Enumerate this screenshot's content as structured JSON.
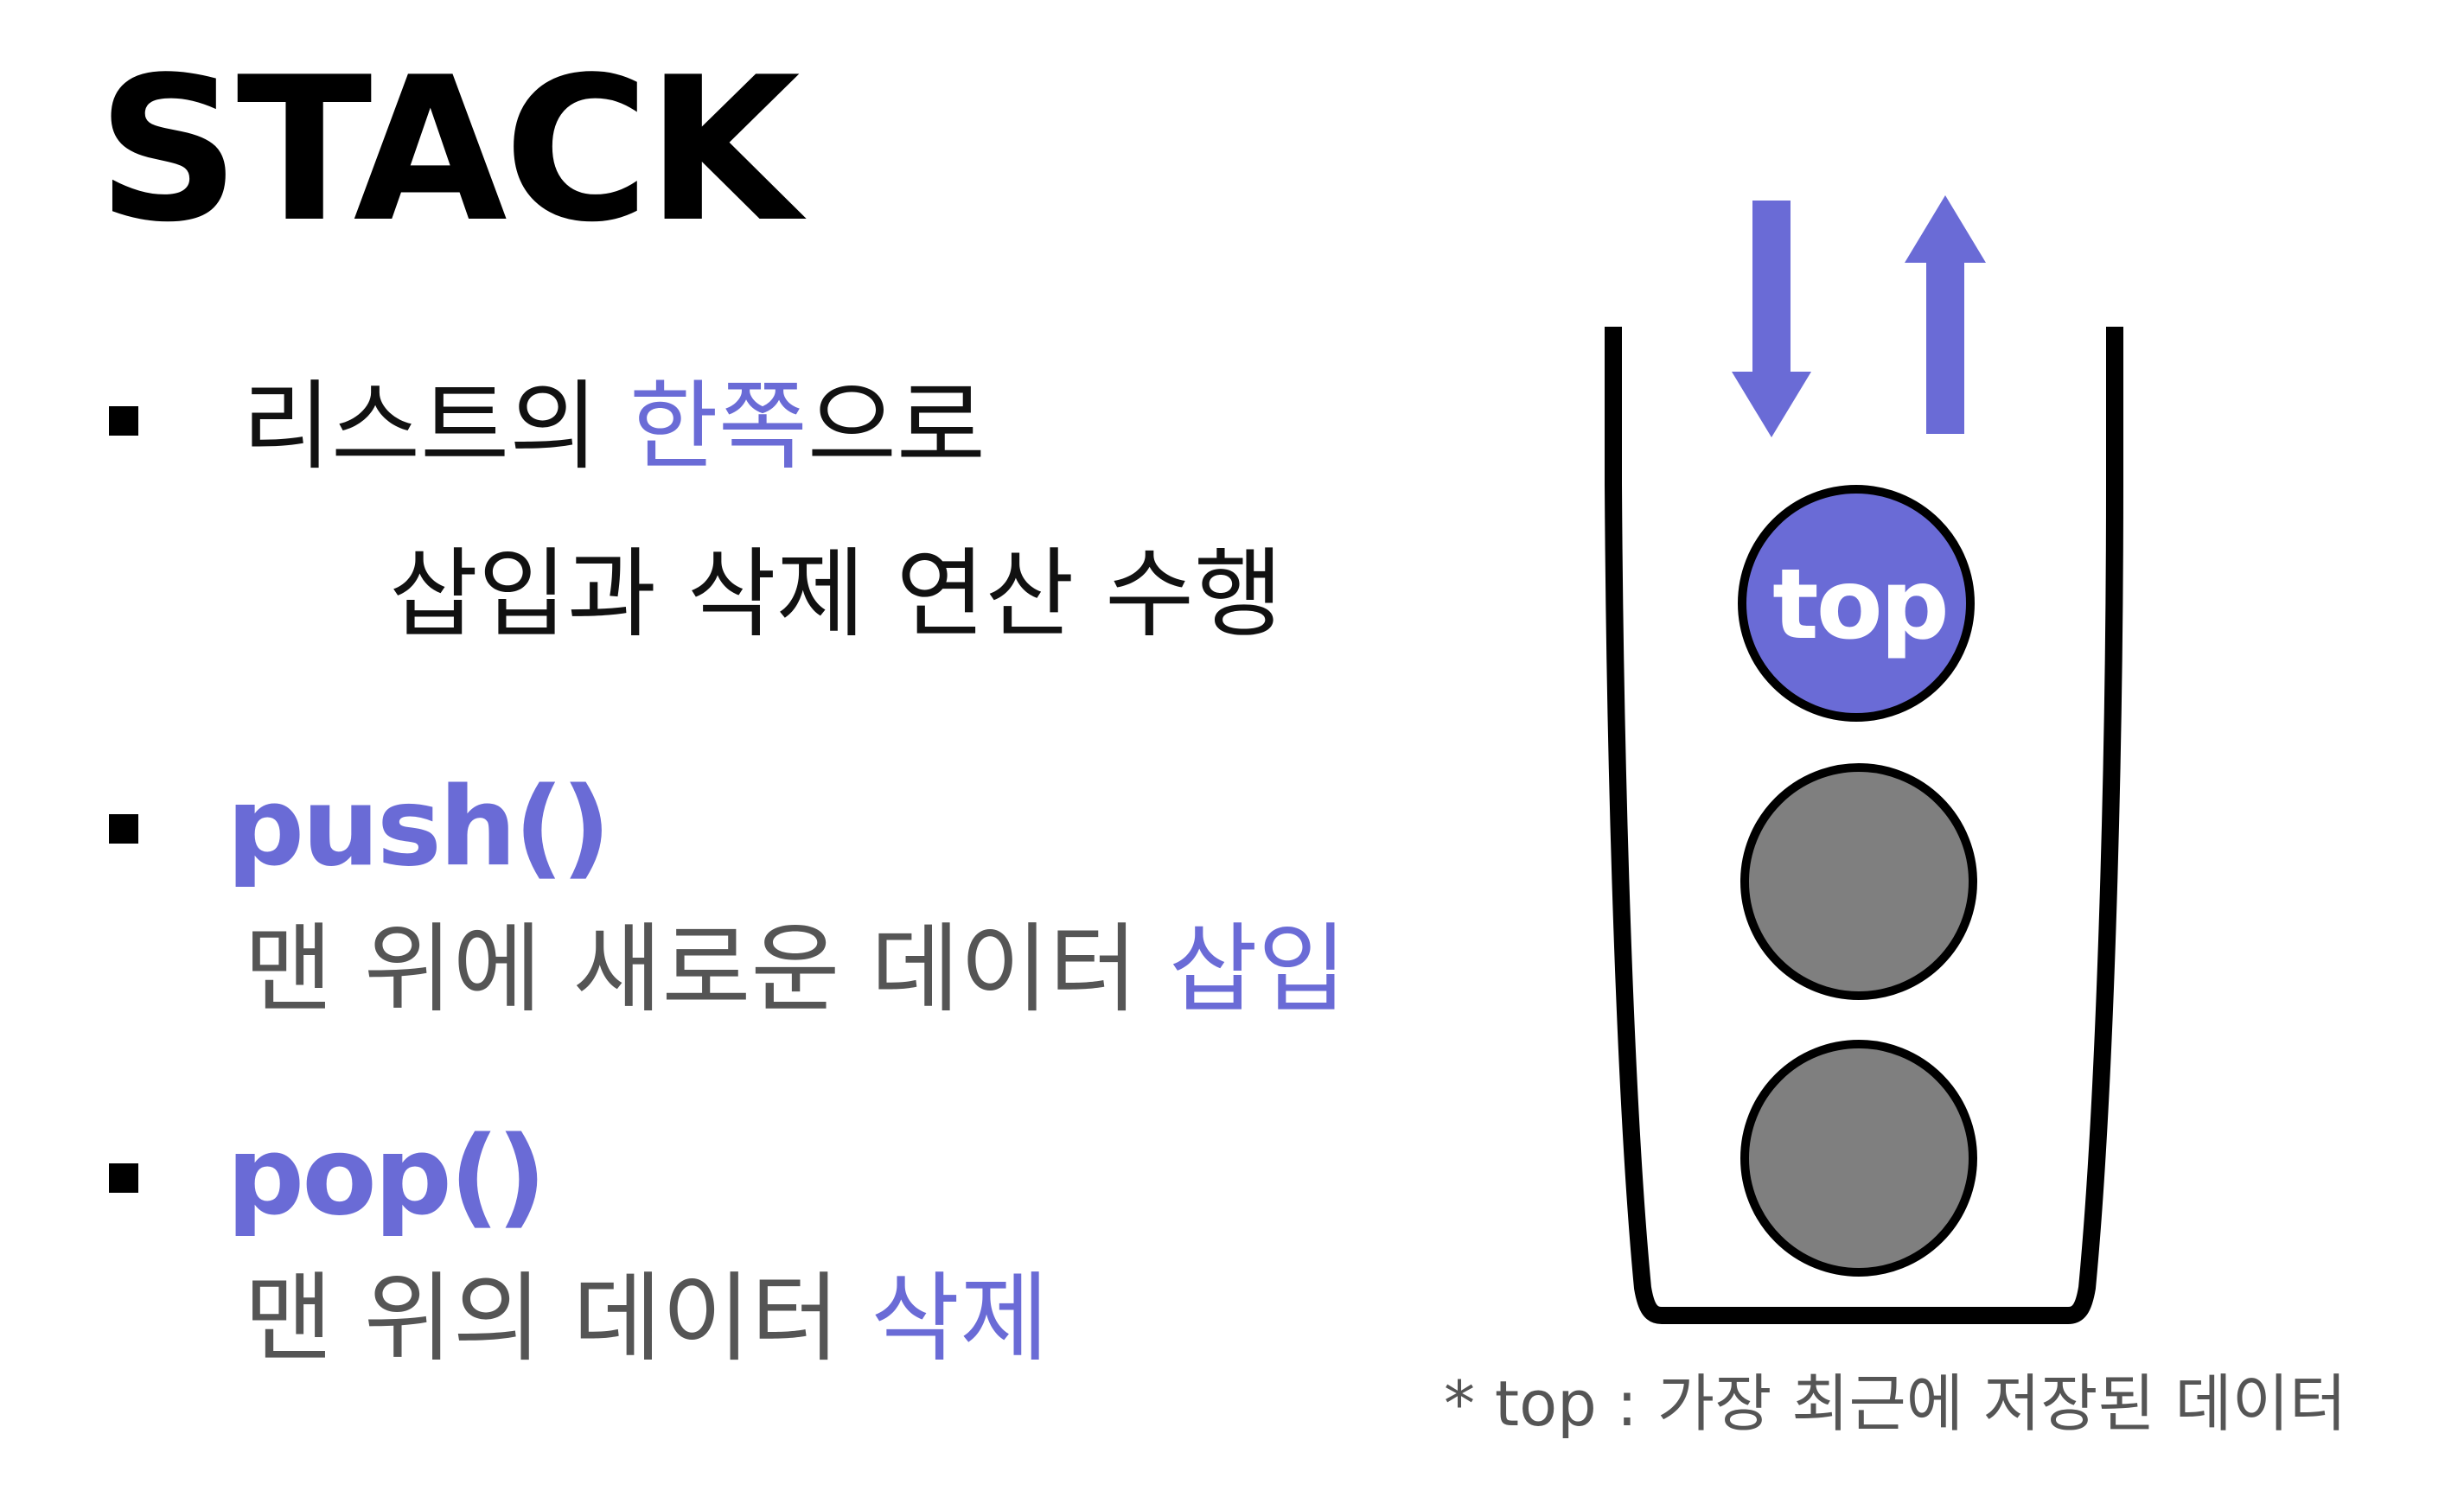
{
  "title": "STACK",
  "bullets": [
    {
      "line1": {
        "before": "리스트의 ",
        "accent": "한쪽",
        "after": "으로"
      },
      "line2": "삽입과 삭제 연산 수행"
    },
    {
      "code": "push()",
      "desc": {
        "before": "맨 위에 새로운 데이터 ",
        "accent": "삽입"
      }
    },
    {
      "code": "pop()",
      "desc": {
        "before": "맨 위의 데이터 ",
        "accent": "삭제"
      }
    }
  ],
  "diagram": {
    "top_label": "top",
    "caption": "* top : 가장 최근에 저장된 데이터",
    "icons": [
      "push-down-arrow-icon",
      "pop-up-arrow-icon"
    ]
  },
  "colors": {
    "accent": "#6a6bd6",
    "element_gray": "#7f7f7f",
    "text_black": "#111111",
    "text_gray": "#555555"
  }
}
